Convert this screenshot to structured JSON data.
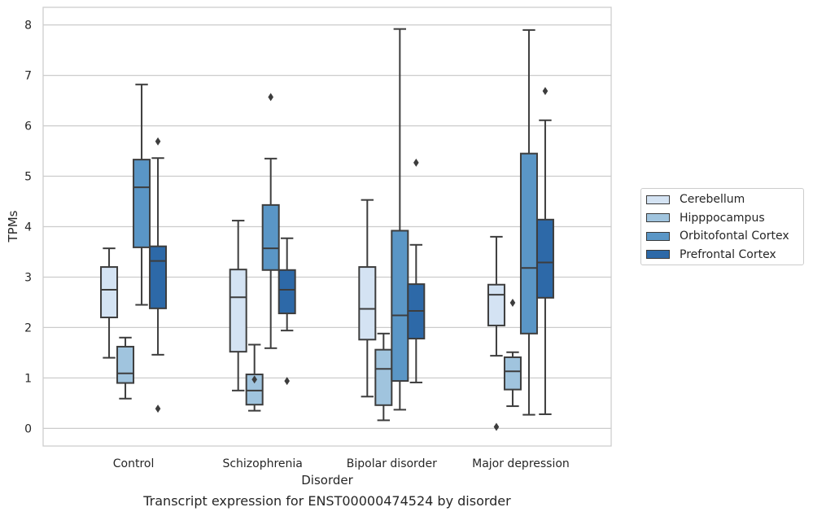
{
  "chart_data": {
    "type": "box",
    "xlabel": "Disorder",
    "ylabel": "TPMs",
    "ylim": [
      -0.35,
      8.35
    ],
    "yticks": [
      0,
      1,
      2,
      3,
      4,
      5,
      6,
      7,
      8
    ],
    "grid": "horizontal",
    "legend_position": "right",
    "categories": [
      "Control",
      "Schizophrenia",
      "Bipolar disorder",
      "Major depression"
    ],
    "series": [
      {
        "name": "Cerebellum",
        "color": "#d4e3f3",
        "boxes": [
          {
            "whisker_low": 1.4,
            "q1": 2.2,
            "median": 2.75,
            "q3": 3.2,
            "whisker_high": 3.57,
            "outliers": []
          },
          {
            "whisker_low": 0.75,
            "q1": 1.52,
            "median": 2.6,
            "q3": 3.15,
            "whisker_high": 4.12,
            "outliers": []
          },
          {
            "whisker_low": 0.63,
            "q1": 1.76,
            "median": 2.37,
            "q3": 3.2,
            "whisker_high": 4.53,
            "outliers": []
          },
          {
            "whisker_low": 1.44,
            "q1": 2.04,
            "median": 2.65,
            "q3": 2.85,
            "whisker_high": 3.8,
            "outliers": [
              0.03
            ]
          }
        ]
      },
      {
        "name": "Hipppocampus",
        "color": "#a0c4de",
        "boxes": [
          {
            "whisker_low": 0.59,
            "q1": 0.9,
            "median": 1.09,
            "q3": 1.62,
            "whisker_high": 1.8,
            "outliers": []
          },
          {
            "whisker_low": 0.35,
            "q1": 0.47,
            "median": 0.75,
            "q3": 1.07,
            "whisker_high": 1.66,
            "outliers": [
              0.97
            ]
          },
          {
            "whisker_low": 0.16,
            "q1": 0.46,
            "median": 1.18,
            "q3": 1.56,
            "whisker_high": 1.88,
            "outliers": []
          },
          {
            "whisker_low": 0.44,
            "q1": 0.77,
            "median": 1.13,
            "q3": 1.41,
            "whisker_high": 1.51,
            "outliers": [
              2.49
            ]
          }
        ]
      },
      {
        "name": "Orbitofontal Cortex",
        "color": "#5a96c6",
        "boxes": [
          {
            "whisker_low": 2.45,
            "q1": 3.59,
            "median": 4.78,
            "q3": 5.33,
            "whisker_high": 6.82,
            "outliers": []
          },
          {
            "whisker_low": 1.59,
            "q1": 3.14,
            "median": 3.57,
            "q3": 4.43,
            "whisker_high": 5.35,
            "outliers": [
              6.57
            ]
          },
          {
            "whisker_low": 0.37,
            "q1": 0.94,
            "median": 2.24,
            "q3": 3.92,
            "whisker_high": 7.92,
            "outliers": []
          },
          {
            "whisker_low": 0.27,
            "q1": 1.88,
            "median": 3.18,
            "q3": 5.45,
            "whisker_high": 7.9,
            "outliers": []
          }
        ]
      },
      {
        "name": "Prefrontal Cortex",
        "color": "#2d69a8",
        "boxes": [
          {
            "whisker_low": 1.46,
            "q1": 2.38,
            "median": 3.32,
            "q3": 3.61,
            "whisker_high": 5.36,
            "outliers": [
              5.69,
              0.39
            ]
          },
          {
            "whisker_low": 1.94,
            "q1": 2.28,
            "median": 2.75,
            "q3": 3.14,
            "whisker_high": 3.77,
            "outliers": [
              0.94
            ]
          },
          {
            "whisker_low": 0.91,
            "q1": 1.78,
            "median": 2.33,
            "q3": 2.86,
            "whisker_high": 3.64,
            "outliers": [
              5.27
            ]
          },
          {
            "whisker_low": 0.28,
            "q1": 2.59,
            "median": 3.29,
            "q3": 4.14,
            "whisker_high": 6.11,
            "outliers": [
              6.69
            ]
          }
        ]
      }
    ]
  },
  "caption": "Transcript expression for ENST00000474524 by disorder"
}
